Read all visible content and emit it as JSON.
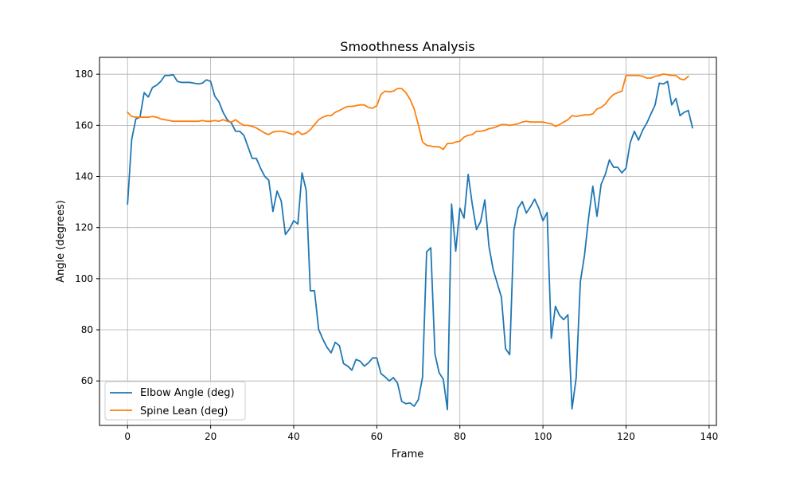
{
  "chart_data": {
    "type": "line",
    "title": "Smoothness Analysis",
    "xlabel": "Frame",
    "ylabel": "Angle (degrees)",
    "xlim": [
      -6.75,
      141.75
    ],
    "ylim": [
      42.6,
      186.6
    ],
    "xticks": [
      0,
      20,
      40,
      60,
      80,
      100,
      120,
      140
    ],
    "yticks": [
      60,
      80,
      100,
      120,
      140,
      160,
      180
    ],
    "grid": true,
    "legend_position": "lower-left",
    "series": [
      {
        "name": "Elbow Angle (deg)",
        "color": "#1f77b4",
        "values": [
          129.2,
          154.5,
          162.5,
          163.2,
          172.8,
          171.1,
          174.8,
          175.7,
          177.2,
          179.5,
          179.5,
          179.8,
          177.2,
          176.8,
          176.8,
          176.8,
          176.5,
          176.2,
          176.5,
          177.8,
          177.2,
          171.4,
          169.2,
          165.1,
          162.2,
          160.9,
          157.7,
          157.7,
          156.1,
          151.6,
          147.1,
          147.1,
          143.3,
          140.1,
          138.5,
          126.3,
          134.3,
          130.4,
          117.3,
          119.5,
          122.7,
          121.4,
          141.4,
          134.6,
          95.3,
          95.3,
          80.2,
          76.4,
          73.2,
          71.0,
          75.1,
          73.8,
          66.8,
          65.8,
          64.2,
          68.4,
          67.7,
          65.8,
          67.1,
          69.0,
          69.0,
          62.9,
          61.6,
          60.0,
          61.3,
          59.1,
          52.0,
          51.1,
          51.4,
          50.1,
          52.7,
          61.3,
          110.5,
          112.1,
          70.6,
          63.2,
          60.7,
          48.8,
          129.2,
          110.8,
          127.6,
          123.7,
          140.8,
          128.9,
          119.2,
          122.4,
          130.8,
          112.7,
          103.7,
          98.2,
          92.8,
          72.6,
          70.3,
          118.9,
          127.6,
          130.2,
          125.7,
          128.2,
          131.1,
          127.6,
          122.7,
          125.9,
          76.7,
          89.2,
          85.6,
          84.0,
          85.9,
          49.1,
          61.3,
          98.8,
          109.2,
          124.0,
          136.2,
          124.4,
          136.9,
          140.8,
          146.5,
          143.6,
          143.6,
          141.4,
          143.3,
          153.2,
          157.7,
          154.2,
          158.1,
          160.9,
          164.5,
          168.0,
          176.5,
          176.2,
          177.2,
          168.0,
          170.5,
          163.8,
          165.1,
          165.8,
          159.0
        ]
      },
      {
        "name": "Spine Lean (deg)",
        "color": "#ff7f0e",
        "values": [
          165.1,
          163.5,
          163.2,
          163.2,
          163.2,
          163.2,
          163.5,
          163.2,
          162.5,
          162.2,
          161.9,
          161.6,
          161.6,
          161.6,
          161.6,
          161.6,
          161.6,
          161.6,
          161.9,
          161.6,
          161.6,
          161.9,
          161.6,
          162.2,
          161.6,
          161.3,
          162.2,
          160.9,
          160.0,
          160.0,
          159.6,
          159.0,
          158.0,
          157.0,
          156.4,
          157.4,
          157.7,
          157.7,
          157.4,
          156.8,
          156.4,
          157.7,
          156.4,
          157.0,
          158.3,
          160.3,
          162.2,
          163.2,
          163.8,
          163.8,
          165.1,
          165.8,
          166.7,
          167.4,
          167.4,
          167.7,
          168.0,
          168.0,
          167.0,
          166.7,
          167.7,
          172.1,
          173.4,
          173.1,
          173.4,
          174.4,
          174.4,
          172.8,
          170.2,
          166.4,
          160.3,
          153.5,
          152.2,
          151.9,
          151.6,
          151.6,
          150.6,
          152.9,
          152.9,
          153.5,
          153.8,
          155.4,
          156.1,
          156.4,
          157.7,
          157.7,
          158.0,
          158.7,
          159.0,
          159.6,
          160.3,
          160.3,
          160.0,
          160.3,
          160.6,
          161.3,
          161.6,
          161.3,
          161.3,
          161.3,
          161.3,
          160.9,
          160.6,
          159.6,
          160.3,
          161.3,
          162.2,
          163.8,
          163.5,
          163.8,
          164.1,
          164.1,
          164.5,
          166.4,
          167.0,
          168.3,
          170.5,
          172.1,
          172.8,
          173.4,
          179.5,
          179.5,
          179.5,
          179.5,
          179.2,
          178.5,
          178.5,
          179.2,
          179.5,
          180.1,
          179.8,
          179.5,
          179.5,
          178.2,
          177.8,
          179.2
        ]
      }
    ]
  }
}
